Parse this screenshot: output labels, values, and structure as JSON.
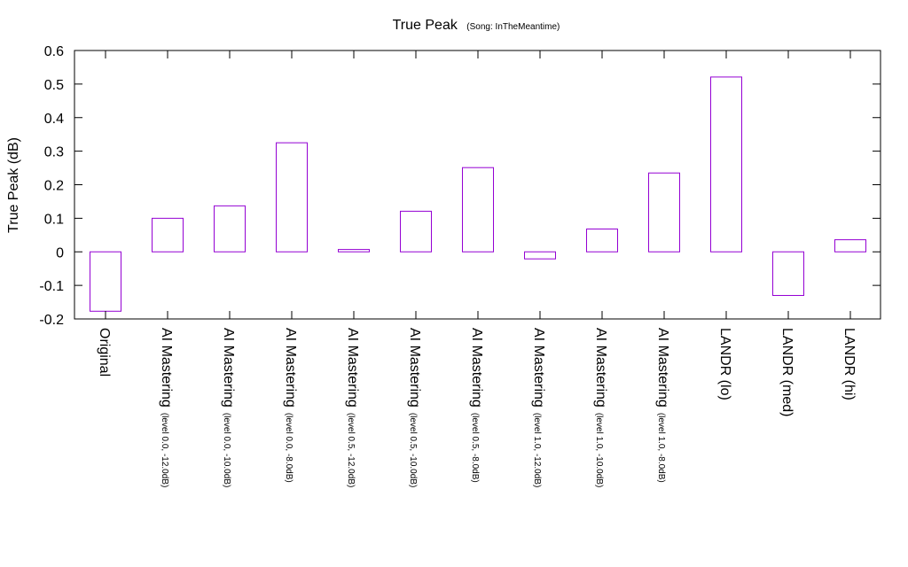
{
  "chart_data": {
    "type": "bar",
    "title": "True Peak",
    "subtitle": "(Song: InTheMeantime)",
    "ylabel": "True Peak (dB)",
    "xlabel": "",
    "ylim": [
      -0.2,
      0.6
    ],
    "yticks": [
      -0.2,
      -0.1,
      0,
      0.1,
      0.2,
      0.3,
      0.4,
      0.5,
      0.6
    ],
    "grid": false,
    "bar_color": "#9400d3",
    "categories": [
      {
        "label": "Original",
        "sub": ""
      },
      {
        "label": "AI Mastering",
        "sub": "(level 0.0, -12.0dB)"
      },
      {
        "label": "AI Mastering",
        "sub": "(level 0.0, -10.0dB)"
      },
      {
        "label": "AI Mastering",
        "sub": "(level 0.0, -8.0dB)"
      },
      {
        "label": "AI Mastering",
        "sub": "(level 0.5, -12.0dB)"
      },
      {
        "label": "AI Mastering",
        "sub": "(level 0.5, -10.0dB)"
      },
      {
        "label": "AI Mastering",
        "sub": "(level 0.5, -8.0dB)"
      },
      {
        "label": "AI Mastering",
        "sub": "(level 1.0, -12.0dB)"
      },
      {
        "label": "AI Mastering",
        "sub": "(level 1.0, -10.0dB)"
      },
      {
        "label": "AI Mastering",
        "sub": "(level 1.0, -8.0dB)"
      },
      {
        "label": "LANDR (lo)",
        "sub": ""
      },
      {
        "label": "LANDR (med)",
        "sub": ""
      },
      {
        "label": "LANDR (hi)",
        "sub": ""
      }
    ],
    "values": [
      -0.177,
      0.1,
      0.137,
      0.325,
      0.007,
      0.121,
      0.251,
      -0.021,
      0.068,
      0.235,
      0.521,
      -0.13,
      0.036
    ]
  }
}
